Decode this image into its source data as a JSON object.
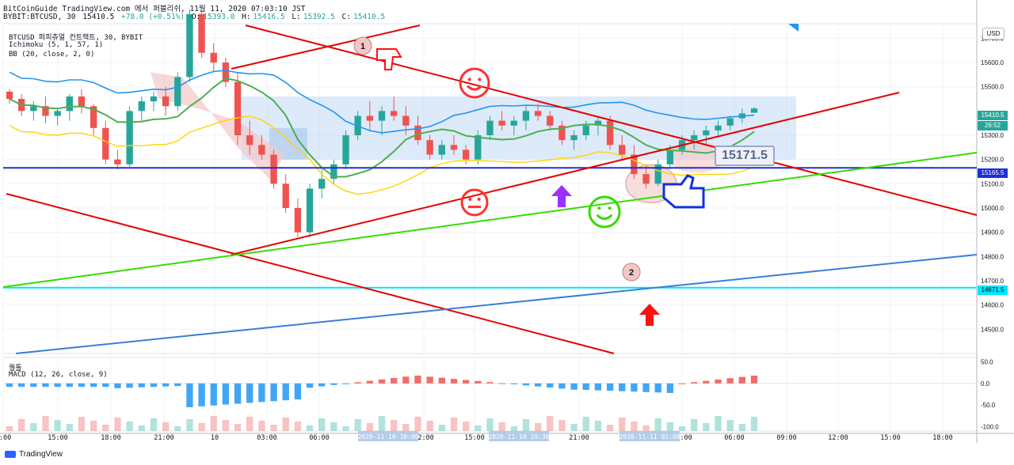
{
  "header": {
    "line1": "BitCoinGuide TradingView.com 에서 퍼블리쉬, 11월 11, 2020 07:03:10 JST",
    "symbol": "BYBIT:BTCUSD, 30",
    "last": "15410.5",
    "change": "+78.0 (+0.51%)",
    "open_label": "O:",
    "open": "15393.0",
    "high_label": "H:",
    "high": "15416.5",
    "low_label": "L:",
    "low": "15392.5",
    "close_label": "C:",
    "close": "15410.5"
  },
  "legend": {
    "title": "BTCUSD 퍼피츄얼 컨트랙트, 30, BYBIT",
    "ichimoku": "Ichimoku (5, 1, 57, 1)",
    "bb": "BB (20, close, 2, 0)",
    "macd_group": "퀄톨",
    "macd": "MACD (12, 26, close, 9)"
  },
  "axis": {
    "currency": "USD",
    "price_ticks": [
      "15700.0",
      "15600.0",
      "15500.0",
      "15300.0",
      "15200.0",
      "15100.0",
      "15000.0",
      "14900.0",
      "14800.0",
      "14700.0",
      "14600.0",
      "14500.0"
    ],
    "macd_ticks": [
      "50.0",
      "0.0",
      "-50.0",
      "-100.0"
    ],
    "time_ticks": [
      "2:00",
      "15:00",
      "18:00",
      "21:00",
      "10",
      "03:00",
      "06:00",
      "12:00",
      "15:00",
      "21:00",
      "03:00",
      "06:00",
      "09:00",
      "12:00",
      "15:00",
      "18:00"
    ],
    "time_highlights": [
      "2020-11-10  10:00",
      "2020-11-10  19:30",
      "2020-11-11  01:00"
    ]
  },
  "price_labels": {
    "last": "15410.5",
    "countdown": "26:52",
    "support": "15165.5",
    "lower": "14671.5"
  },
  "annotations": {
    "callout": "15171.5",
    "marker1": "1",
    "marker2": "2"
  },
  "branding": {
    "name": "TradingView"
  },
  "colors": {
    "up": "#26a69a",
    "down": "#ef5350",
    "ichimoku_cloud": "#f4c7c7",
    "bb": "#2196f3",
    "support": "#1e2fd6",
    "cyan": "#00e5ff",
    "trend_red": "#e60000",
    "trend_green": "#33dd00",
    "trend_blue": "#3b7dd8"
  },
  "chart_data": {
    "type": "candlestick",
    "symbol": "BYBIT:BTCUSD",
    "interval": "30",
    "ylim": [
      14400,
      15760
    ],
    "candles": [
      [
        15480,
        15490,
        15430,
        15450
      ],
      [
        15450,
        15470,
        15380,
        15400
      ],
      [
        15400,
        15440,
        15360,
        15420
      ],
      [
        15420,
        15460,
        15350,
        15380
      ],
      [
        15380,
        15410,
        15340,
        15400
      ],
      [
        15400,
        15470,
        15360,
        15460
      ],
      [
        15460,
        15490,
        15390,
        15420
      ],
      [
        15420,
        15430,
        15300,
        15330
      ],
      [
        15330,
        15360,
        15180,
        15200
      ],
      [
        15200,
        15240,
        15160,
        15180
      ],
      [
        15180,
        15420,
        15170,
        15400
      ],
      [
        15400,
        15460,
        15360,
        15440
      ],
      [
        15440,
        15480,
        15400,
        15460
      ],
      [
        15460,
        15500,
        15380,
        15420
      ],
      [
        15420,
        15560,
        15400,
        15540
      ],
      [
        15540,
        15820,
        15520,
        15800
      ],
      [
        15800,
        15810,
        15620,
        15640
      ],
      [
        15640,
        15680,
        15560,
        15600
      ],
      [
        15600,
        15620,
        15500,
        15520
      ],
      [
        15520,
        15560,
        15260,
        15300
      ],
      [
        15300,
        15360,
        15220,
        15260
      ],
      [
        15260,
        15300,
        15200,
        15220
      ],
      [
        15220,
        15240,
        15080,
        15100
      ],
      [
        15100,
        15140,
        14980,
        15000
      ],
      [
        15000,
        15040,
        14880,
        14900
      ],
      [
        14900,
        15100,
        14880,
        15080
      ],
      [
        15080,
        15160,
        15040,
        15120
      ],
      [
        15120,
        15200,
        15100,
        15180
      ],
      [
        15180,
        15320,
        15160,
        15300
      ],
      [
        15300,
        15400,
        15280,
        15380
      ],
      [
        15380,
        15440,
        15320,
        15360
      ],
      [
        15360,
        15420,
        15300,
        15400
      ],
      [
        15400,
        15460,
        15360,
        15380
      ],
      [
        15380,
        15420,
        15300,
        15340
      ],
      [
        15340,
        15380,
        15260,
        15280
      ],
      [
        15280,
        15300,
        15200,
        15220
      ],
      [
        15220,
        15280,
        15200,
        15260
      ],
      [
        15260,
        15300,
        15220,
        15240
      ],
      [
        15240,
        15260,
        15180,
        15200
      ],
      [
        15200,
        15320,
        15180,
        15300
      ],
      [
        15300,
        15380,
        15280,
        15360
      ],
      [
        15360,
        15400,
        15320,
        15340
      ],
      [
        15340,
        15380,
        15300,
        15360
      ],
      [
        15360,
        15420,
        15320,
        15400
      ],
      [
        15400,
        15430,
        15360,
        15380
      ],
      [
        15380,
        15400,
        15320,
        15340
      ],
      [
        15340,
        15360,
        15260,
        15280
      ],
      [
        15280,
        15320,
        15240,
        15300
      ],
      [
        15300,
        15360,
        15280,
        15340
      ],
      [
        15340,
        15380,
        15300,
        15360
      ],
      [
        15360,
        15380,
        15240,
        15260
      ],
      [
        15260,
        15300,
        15200,
        15220
      ],
      [
        15220,
        15260,
        15120,
        15140
      ],
      [
        15140,
        15180,
        15080,
        15100
      ],
      [
        15100,
        15200,
        15090,
        15180
      ],
      [
        15180,
        15260,
        15160,
        15240
      ],
      [
        15240,
        15300,
        15220,
        15280
      ],
      [
        15280,
        15320,
        15240,
        15300
      ],
      [
        15300,
        15340,
        15260,
        15320
      ],
      [
        15320,
        15360,
        15300,
        15340
      ],
      [
        15340,
        15380,
        15320,
        15370
      ],
      [
        15370,
        15410,
        15350,
        15390
      ],
      [
        15393,
        15416.5,
        15392.5,
        15410.5
      ]
    ],
    "price_lines": [
      15165.5,
      14671.5
    ],
    "macd_ylim": [
      -110,
      60
    ]
  }
}
